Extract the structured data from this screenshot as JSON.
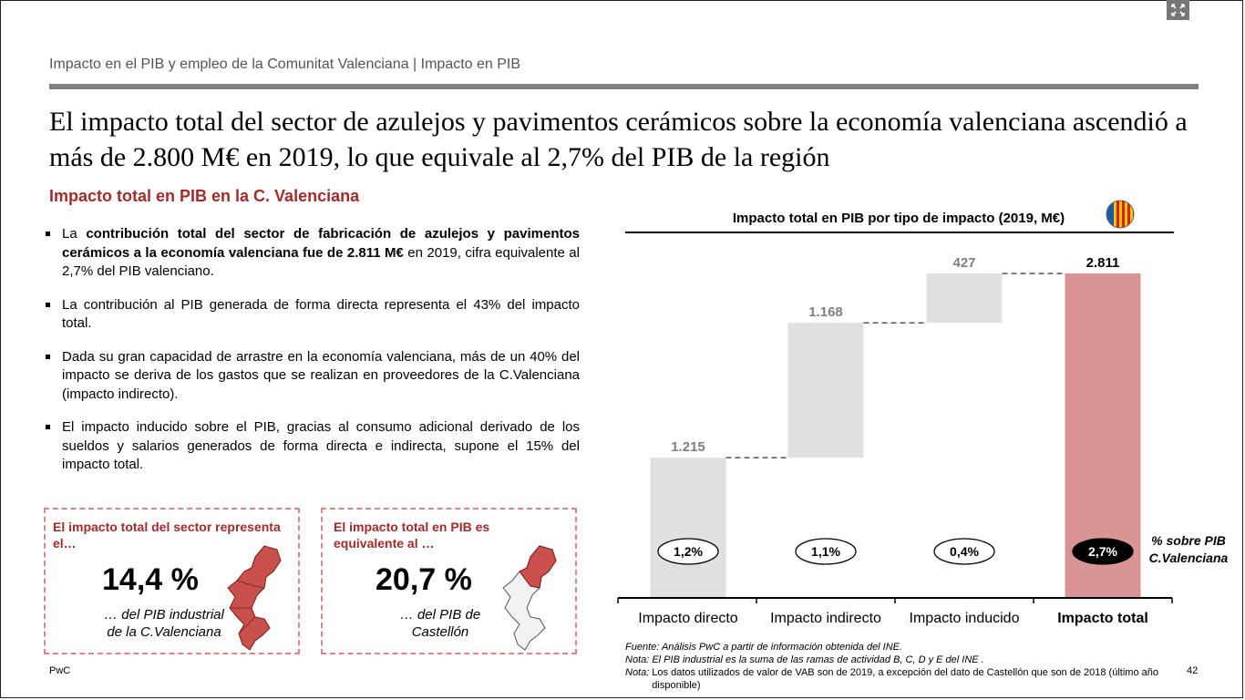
{
  "breadcrumb": "Impacto en el PIB y empleo de la Comunitat Valenciana | Impacto en PIB",
  "headline": "El impacto total del sector de azulejos y pavimentos cerámicos sobre la economía valenciana ascendió a más de 2.800 M€ en 2019, lo que equivale al 2,7% del PIB de la región",
  "left_title": "Impacto total en PIB en la C. Valenciana",
  "bullets": [
    {
      "pre": "La ",
      "bold": "contribución total del sector de fabricación de azulejos y pavimentos cerámicos a la economía valenciana fue de 2.811 M€",
      "post": " en 2019, cifra equivalente al 2,7% del PIB valenciano."
    },
    {
      "pre": "La contribución al PIB generada de forma directa representa el 43% del impacto total.",
      "bold": "",
      "post": ""
    },
    {
      "pre": "Dada su gran capacidad de arrastre en la economía valenciana, más de un 40% del impacto se deriva de los gastos que se realizan en proveedores de la C.Valenciana (impacto indirecto).",
      "bold": "",
      "post": ""
    },
    {
      "pre": "El impacto inducido sobre el PIB, gracias al consumo adicional derivado de los sueldos y salarios generados de forma directa e indirecta, supone el 15% del impacto total.",
      "bold": "",
      "post": ""
    }
  ],
  "box1": {
    "title": "El impacto total del sector representa el…",
    "value": "14,4 %",
    "sub1": "… del PIB industrial",
    "sub2": "de la C.Valenciana"
  },
  "box2": {
    "title": "El impacto total en PIB es equivalente al …",
    "value": "20,7 %",
    "sub1": "… del PIB de",
    "sub2": "Castellón"
  },
  "footer_left": "PwC",
  "page_number": "42",
  "source": {
    "label": "Fuente: Análisis PwC a partir de información obtenida del INE."
  },
  "note1": "Nota: El PIB industrial es la suma de las ramas de actividad B, C, D y E del INE .",
  "note2": {
    "label": "Nota:",
    "text": "Los datos utilizados de valor de VAB son de 2019, a excepción del dato de Castellón que son de 2018 (último año disponible)"
  },
  "colors": {
    "accent": "#a52a2a",
    "total_bar": "#d99594",
    "step_bar": "#e0e0e0",
    "dash_border": "#dd8888"
  },
  "icons": {
    "flag": "valencia-flag-icon",
    "map1": "valencia-region-map-icon",
    "map2": "castellon-map-icon",
    "fullscreen": "fullscreen-icon"
  },
  "chart_data": {
    "type": "bar",
    "subtype": "waterfall",
    "title": "Impacto total en PIB por tipo de impacto (2019, M€)",
    "categories": [
      "Impacto directo",
      "Impacto indirecto",
      "Impacto inducido",
      "Impacto total"
    ],
    "values": [
      1215,
      1168,
      427,
      2811
    ],
    "value_labels": [
      "1.215",
      "1.168",
      "427",
      "2.811"
    ],
    "pct_labels": [
      "1,2%",
      "1,1%",
      "0,4%",
      "2,7%"
    ],
    "pct_legend_line1": "% sobre PIB",
    "pct_legend_line2": "C.Valenciana",
    "ylim": [
      0,
      2811
    ]
  }
}
